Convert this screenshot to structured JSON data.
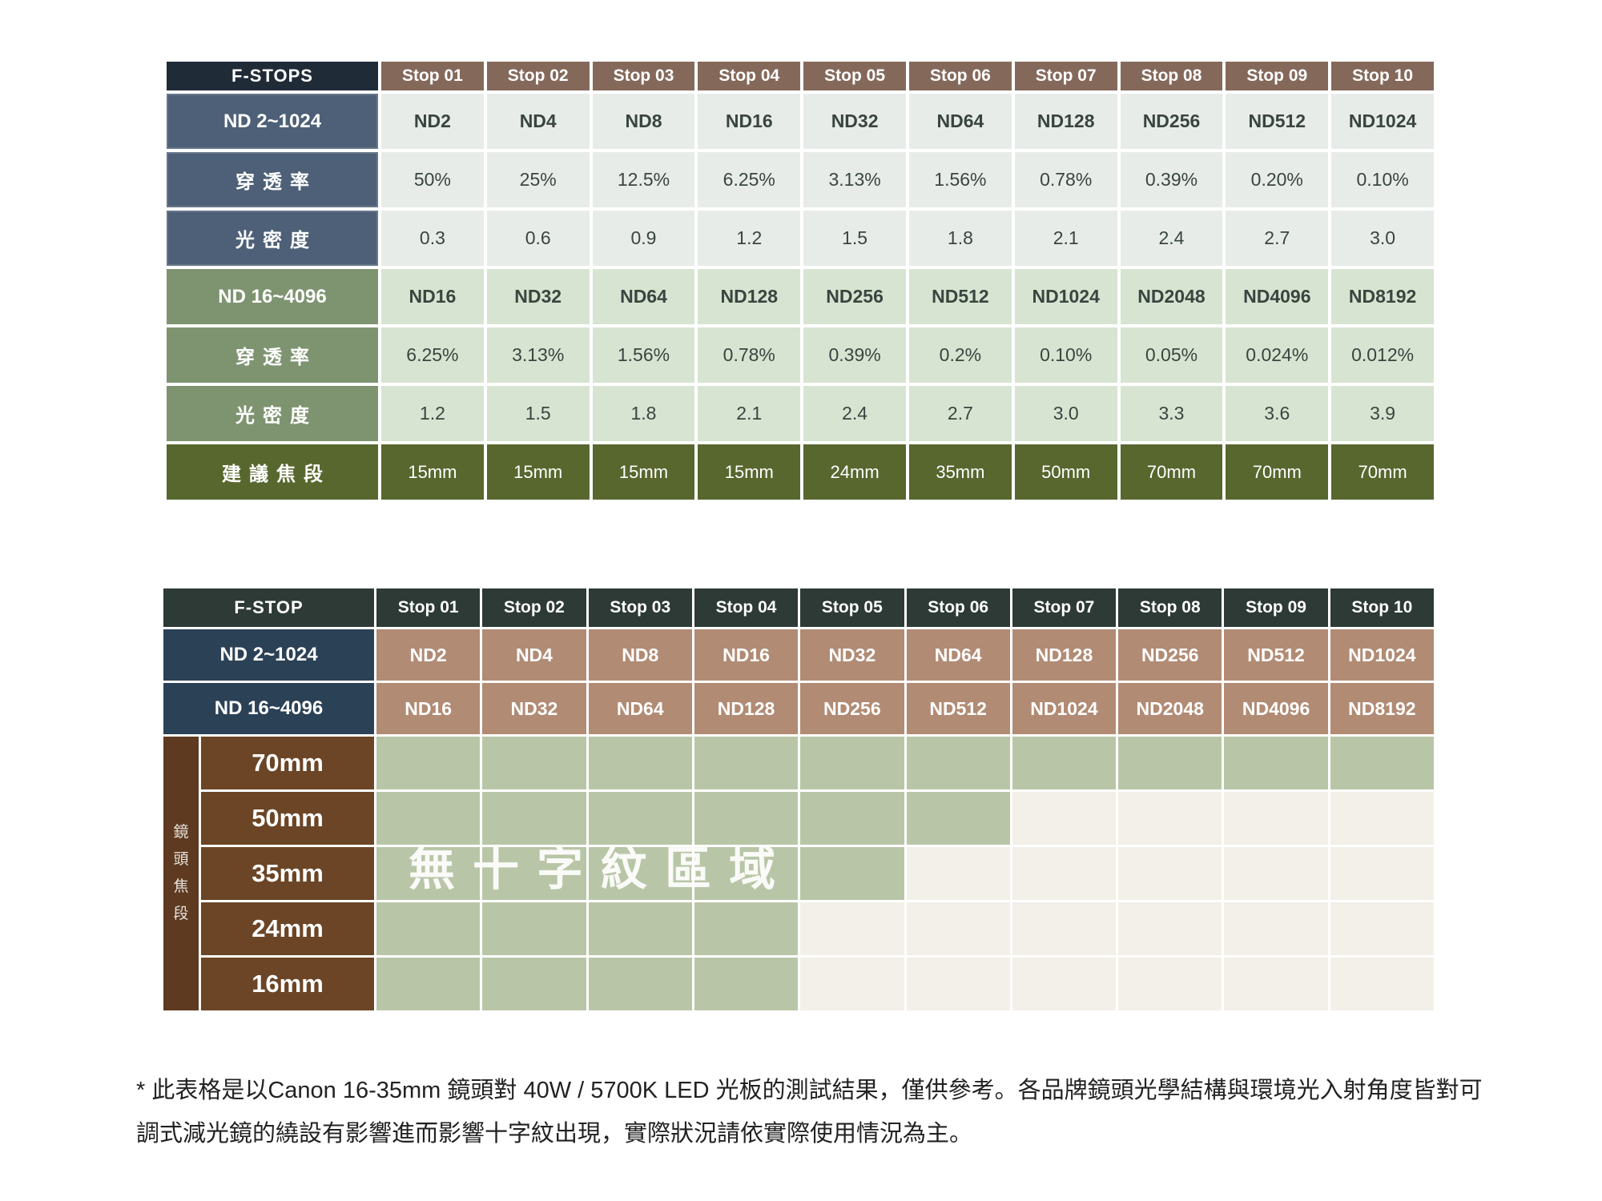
{
  "page": {
    "background": "#ffffff"
  },
  "colors": {
    "t1_header": "#202b38",
    "t1_stop_header": "#84695b",
    "t1_slate": "#4d6077",
    "t1_light_cell": "#e8ece8",
    "t1_sage_label": "#7e9471",
    "t1_sage_cell": "#d6e4d1",
    "t1_olive": "#57672e",
    "cell_text": "#39453f",
    "t2_header": "#2d3a36",
    "t2_navy": "#2b4156",
    "t2_tan": "#b18b74",
    "chart_green": "#b8c6a7",
    "chart_cream": "#f2f0e8",
    "focal_brown": "#6b4526",
    "side_brown": "#5d3a20"
  },
  "chart_data": [
    {
      "type": "table",
      "name": "nd-filter-spec-table",
      "corner_label": "F-STOPS",
      "columns": [
        "Stop 01",
        "Stop 02",
        "Stop 03",
        "Stop 04",
        "Stop 05",
        "Stop 06",
        "Stop 07",
        "Stop 08",
        "Stop 09",
        "Stop 10"
      ],
      "rows": [
        {
          "label": "ND 2~1024",
          "band": "blue",
          "bold_values": true,
          "values": [
            "ND2",
            "ND4",
            "ND8",
            "ND16",
            "ND32",
            "ND64",
            "ND128",
            "ND256",
            "ND512",
            "ND1024"
          ]
        },
        {
          "label": "穿透率",
          "band": "blue",
          "bold_values": false,
          "values": [
            "50%",
            "25%",
            "12.5%",
            "6.25%",
            "3.13%",
            "1.56%",
            "0.78%",
            "0.39%",
            "0.20%",
            "0.10%"
          ]
        },
        {
          "label": "光密度",
          "band": "blue",
          "bold_values": false,
          "values": [
            "0.3",
            "0.6",
            "0.9",
            "1.2",
            "1.5",
            "1.8",
            "2.1",
            "2.4",
            "2.7",
            "3.0"
          ]
        },
        {
          "label": "ND 16~4096",
          "band": "green",
          "bold_values": true,
          "values": [
            "ND16",
            "ND32",
            "ND64",
            "ND128",
            "ND256",
            "ND512",
            "ND1024",
            "ND2048",
            "ND4096",
            "ND8192"
          ]
        },
        {
          "label": "穿透率",
          "band": "green",
          "bold_values": false,
          "values": [
            "6.25%",
            "3.13%",
            "1.56%",
            "0.78%",
            "0.39%",
            "0.2%",
            "0.10%",
            "0.05%",
            "0.024%",
            "0.012%"
          ]
        },
        {
          "label": "光密度",
          "band": "green",
          "bold_values": false,
          "values": [
            "1.2",
            "1.5",
            "1.8",
            "2.1",
            "2.4",
            "2.7",
            "3.0",
            "3.3",
            "3.6",
            "3.9"
          ]
        },
        {
          "label": "建議焦段",
          "band": "olive",
          "bold_values": false,
          "values": [
            "15mm",
            "15mm",
            "15mm",
            "15mm",
            "24mm",
            "35mm",
            "50mm",
            "70mm",
            "70mm",
            "70mm"
          ]
        }
      ]
    },
    {
      "type": "heatmap",
      "name": "no-cross-pattern-matrix",
      "corner_label": "F-STOP",
      "columns": [
        "Stop 01",
        "Stop 02",
        "Stop 03",
        "Stop 04",
        "Stop 05",
        "Stop 06",
        "Stop 07",
        "Stop 08",
        "Stop 09",
        "Stop 10"
      ],
      "nd_rows": [
        {
          "label": "ND 2~1024",
          "values": [
            "ND2",
            "ND4",
            "ND8",
            "ND16",
            "ND32",
            "ND64",
            "ND128",
            "ND256",
            "ND512",
            "ND1024"
          ]
        },
        {
          "label": "ND 16~4096",
          "values": [
            "ND16",
            "ND32",
            "ND64",
            "ND128",
            "ND256",
            "ND512",
            "ND1024",
            "ND2048",
            "ND4096",
            "ND8192"
          ]
        }
      ],
      "side_label": "鏡頭焦段",
      "focal_rows": [
        {
          "label": "70mm",
          "no_cross_through_stop": 10
        },
        {
          "label": "50mm",
          "no_cross_through_stop": 6
        },
        {
          "label": "35mm",
          "no_cross_through_stop": 5
        },
        {
          "label": "24mm",
          "no_cross_through_stop": 4
        },
        {
          "label": "16mm",
          "no_cross_through_stop": 4
        }
      ],
      "area_label": "無十字紋區域"
    }
  ],
  "footnote": {
    "line1": "* 此表格是以Canon 16-35mm 鏡頭對 40W / 5700K LED 光板的測試結果，僅供參考。各品牌鏡頭光學結構與環境光入射角度皆對可",
    "line2": "調式減光鏡的繞設有影響進而影響十字紋出現，實際狀況請依實際使用情況為主。"
  }
}
